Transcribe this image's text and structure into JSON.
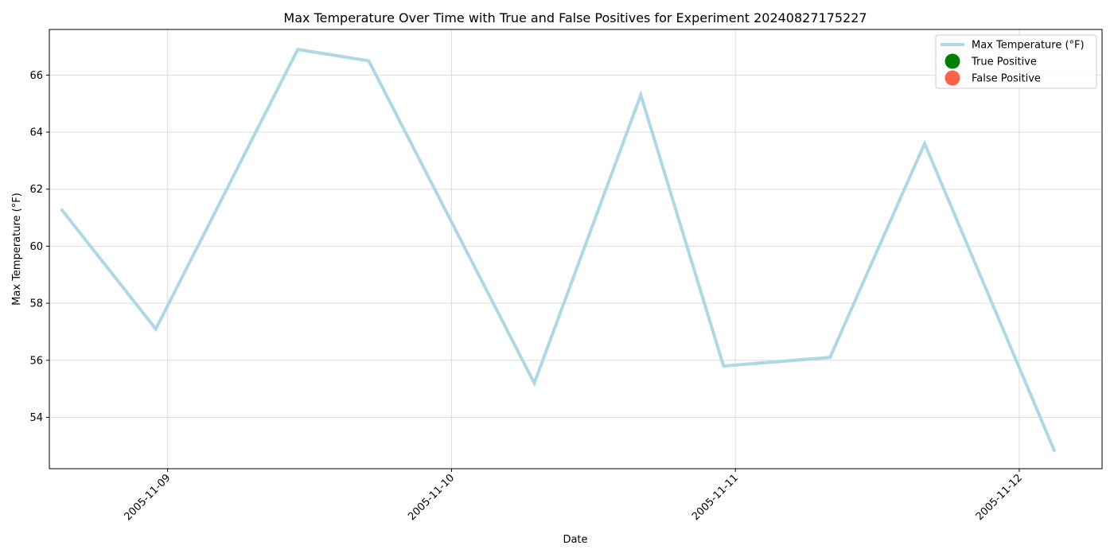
{
  "chart_data": {
    "type": "line",
    "title": "Max Temperature Over Time with True and False Positives for Experiment 20240827175227",
    "xlabel": "Date",
    "ylabel": "Max Temperature (°F)",
    "x_ticks": [
      "2005-11-09",
      "2005-11-10",
      "2005-11-11",
      "2005-11-12"
    ],
    "y_ticks": [
      54,
      56,
      58,
      60,
      62,
      64,
      66
    ],
    "xlim": [
      "2005-11-08 14:00",
      "2005-11-12 07:00"
    ],
    "ylim": [
      52.2,
      67.6
    ],
    "grid": true,
    "legend_position": "top-right",
    "series": [
      {
        "name": "Max Temperature (°F)",
        "color": "#add8e6",
        "points": [
          {
            "x": "2005-11-08 15:00",
            "y": 61.3
          },
          {
            "x": "2005-11-08 23:00",
            "y": 57.1
          },
          {
            "x": "2005-11-09 11:00",
            "y": 66.9
          },
          {
            "x": "2005-11-09 17:00",
            "y": 66.5
          },
          {
            "x": "2005-11-10 07:00",
            "y": 55.2
          },
          {
            "x": "2005-11-10 16:00",
            "y": 65.3
          },
          {
            "x": "2005-11-10 23:00",
            "y": 55.8
          },
          {
            "x": "2005-11-11 08:00",
            "y": 56.1
          },
          {
            "x": "2005-11-11 16:00",
            "y": 63.6
          },
          {
            "x": "2005-11-12 03:00",
            "y": 52.8
          }
        ]
      }
    ],
    "legend": [
      {
        "label": "Max Temperature (°F)",
        "kind": "line",
        "color": "#add8e6"
      },
      {
        "label": "True Positive",
        "kind": "marker",
        "color": "#008000"
      },
      {
        "label": "False Positive",
        "kind": "marker",
        "color": "#ff6347"
      }
    ]
  }
}
